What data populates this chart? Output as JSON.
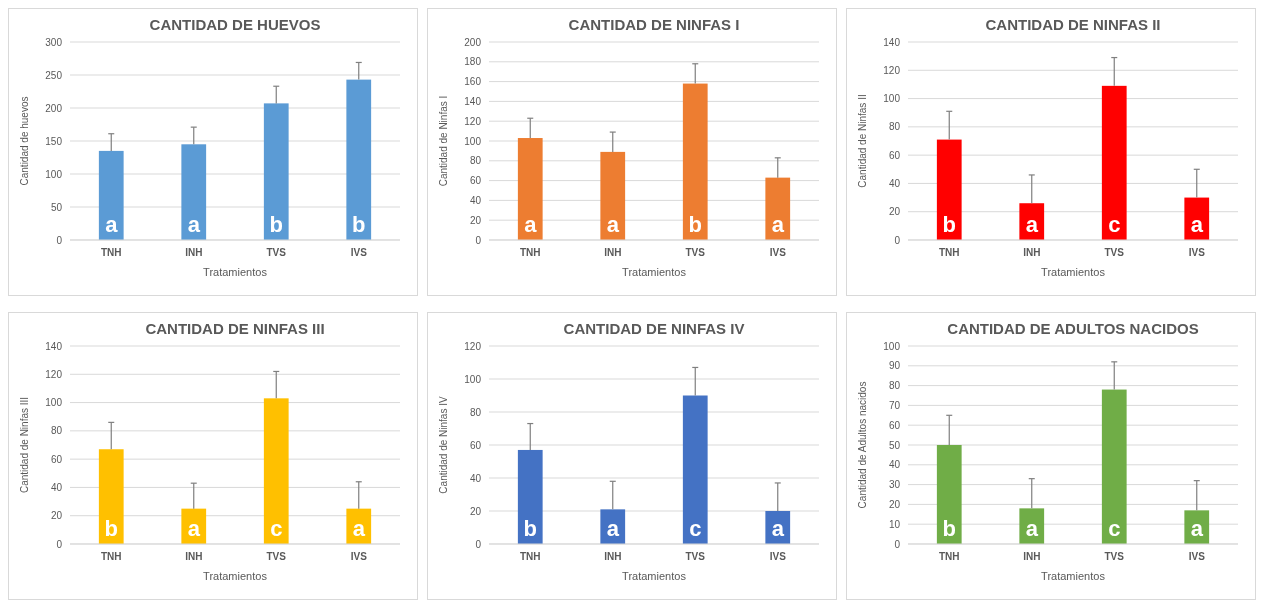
{
  "chart_data": [
    {
      "type": "bar",
      "title": "CANTIDAD DE HUEVOS",
      "xlabel": "Tratamientos",
      "ylabel": "Cantidad de huevos",
      "categories": [
        "TNH",
        "INH",
        "TVS",
        "IVS"
      ],
      "values": [
        135,
        145,
        207,
        243
      ],
      "errors": [
        [
          135,
          161
        ],
        [
          145,
          171
        ],
        [
          207,
          233
        ],
        [
          243,
          269
        ]
      ],
      "color": "#5b9bd5",
      "ylim": [
        0,
        300
      ],
      "yticks": [
        0,
        50,
        100,
        150,
        200,
        250,
        300
      ],
      "grid": "y",
      "annotations": [
        "a",
        "a",
        "b",
        "b"
      ]
    },
    {
      "type": "bar",
      "title": "CANTIDAD DE NINFAS I",
      "xlabel": "Tratamientos",
      "ylabel": "Cantidad de Ninfas I",
      "categories": [
        "TNH",
        "INH",
        "TVS",
        "IVS"
      ],
      "values": [
        103,
        89,
        158,
        63
      ],
      "errors": [
        [
          103,
          123
        ],
        [
          89,
          109
        ],
        [
          158,
          178
        ],
        [
          63,
          83
        ]
      ],
      "color": "#ed7d31",
      "ylim": [
        0,
        200
      ],
      "yticks": [
        0,
        20,
        40,
        60,
        80,
        100,
        120,
        140,
        160,
        180,
        200
      ],
      "grid": "y",
      "annotations": [
        "a",
        "a",
        "b",
        "a"
      ]
    },
    {
      "type": "bar",
      "title": "CANTIDAD DE NINFAS II",
      "xlabel": "Tratamientos",
      "ylabel": "Cantidad de Ninfas II",
      "categories": [
        "TNH",
        "INH",
        "TVS",
        "IVS"
      ],
      "values": [
        71,
        26,
        109,
        30
      ],
      "errors": [
        [
          71,
          91
        ],
        [
          26,
          46
        ],
        [
          109,
          129
        ],
        [
          30,
          50
        ]
      ],
      "color": "#ff0000",
      "ylim": [
        0,
        140
      ],
      "yticks": [
        0,
        20,
        40,
        60,
        80,
        100,
        120,
        140
      ],
      "grid": "y",
      "annotations": [
        "b",
        "a",
        "c",
        "a"
      ]
    },
    {
      "type": "bar",
      "title": "CANTIDAD DE NINFAS III",
      "xlabel": "Tratamientos",
      "ylabel": "Cantidad de Ninfas III",
      "categories": [
        "TNH",
        "INH",
        "TVS",
        "IVS"
      ],
      "values": [
        67,
        25,
        103,
        25
      ],
      "errors": [
        [
          67,
          86
        ],
        [
          25,
          43
        ],
        [
          103,
          122
        ],
        [
          25,
          44
        ]
      ],
      "color": "#ffc000",
      "ylim": [
        0,
        140
      ],
      "yticks": [
        0,
        20,
        40,
        60,
        80,
        100,
        120,
        140
      ],
      "grid": "y",
      "annotations": [
        "b",
        "a",
        "c",
        "a"
      ]
    },
    {
      "type": "bar",
      "title": "CANTIDAD DE NINFAS IV",
      "xlabel": "Tratamientos",
      "ylabel": "Cantidad de Ninfas IV",
      "categories": [
        "TNH",
        "INH",
        "TVS",
        "IVS"
      ],
      "values": [
        57,
        21,
        90,
        20
      ],
      "errors": [
        [
          57,
          73
        ],
        [
          21,
          38
        ],
        [
          90,
          107
        ],
        [
          20,
          37
        ]
      ],
      "color": "#4472c4",
      "ylim": [
        0,
        120
      ],
      "yticks": [
        0,
        20,
        40,
        60,
        80,
        100,
        120
      ],
      "grid": "y",
      "annotations": [
        "b",
        "a",
        "c",
        "a"
      ]
    },
    {
      "type": "bar",
      "title": "CANTIDAD DE ADULTOS NACIDOS",
      "xlabel": "Tratamientos",
      "ylabel": "Cantidad de Adultos nacidos",
      "categories": [
        "TNH",
        "INH",
        "TVS",
        "IVS"
      ],
      "values": [
        50,
        18,
        78,
        17
      ],
      "errors": [
        [
          50,
          65
        ],
        [
          18,
          33
        ],
        [
          78,
          92
        ],
        [
          17,
          32
        ]
      ],
      "color": "#70ad47",
      "ylim": [
        0,
        100
      ],
      "yticks": [
        0,
        10,
        20,
        30,
        40,
        50,
        60,
        70,
        80,
        90,
        100
      ],
      "grid": "y",
      "annotations": [
        "b",
        "a",
        "c",
        "a"
      ]
    }
  ]
}
